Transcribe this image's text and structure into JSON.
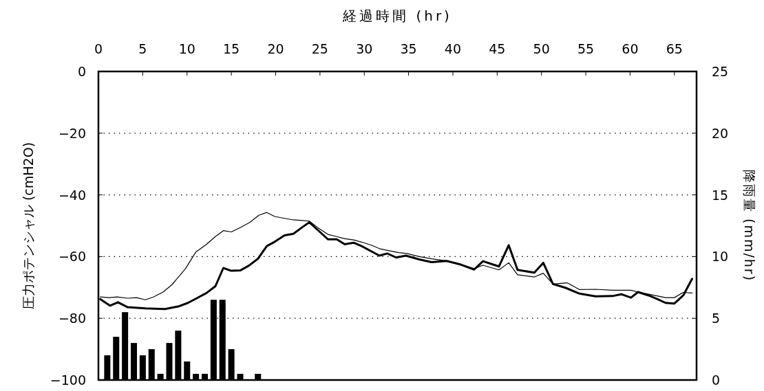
{
  "chart_data": {
    "type": "line",
    "xlabel": "経過時間 (hr)",
    "ylabel": "圧力ポテンシャル (cmH2O)",
    "y2label": "降雨量 (mm/hr)",
    "xlim": [
      0,
      67.5
    ],
    "xticks": [
      0,
      5,
      10,
      15,
      20,
      25,
      30,
      35,
      40,
      45,
      50,
      55,
      60,
      65
    ],
    "ylim": [
      -100,
      0
    ],
    "yticks": [
      -100,
      -80,
      -60,
      -40,
      -20,
      0
    ],
    "y2lim": [
      0,
      25
    ],
    "y2ticks": [
      0,
      5,
      10,
      15,
      20,
      25
    ],
    "grid": "y",
    "series": [
      {
        "type": "bar",
        "axis": "y2",
        "color": "#000000",
        "x": [
          1,
          2,
          3,
          4,
          5,
          6,
          7,
          8,
          9,
          10,
          11,
          12,
          13,
          14,
          15,
          16,
          18
        ],
        "values": [
          2,
          3.5,
          5.5,
          3,
          2,
          2.5,
          0.5,
          3,
          4,
          1.5,
          0.5,
          0.5,
          6.5,
          6.5,
          2.5,
          0.5,
          0.5
        ]
      },
      {
        "color": "#000000",
        "x": [
          0.2,
          1.2,
          2.1,
          3.3,
          4.3,
          5.3,
          6.2,
          7.3,
          8.3,
          9.8,
          11.0,
          12.2,
          13.2,
          14.1,
          15.0,
          16.0,
          17.1,
          18.1,
          19.0,
          19.9,
          21.0,
          22.0,
          23.0,
          23.8,
          24.8,
          25.9,
          26.9,
          27.8,
          28.8,
          29.7,
          30.8,
          31.8,
          32.8,
          33.9,
          34.8,
          36.2,
          37.6,
          39.3,
          40.9,
          42.4,
          43.4,
          45.2,
          46.3,
          47.3,
          49.2,
          50.2,
          51.3,
          52.9,
          54.3,
          56.1,
          58.0,
          60.1,
          60.9,
          62.1,
          64.0,
          65.0,
          66.0,
          67.0
        ],
        "values": [
          -73.1,
          -73.3,
          -73.1,
          -73.5,
          -73.3,
          -74.0,
          -73.1,
          -71.5,
          -69.1,
          -64.0,
          -58.5,
          -56.0,
          -53.5,
          -51.6,
          -52.0,
          -50.6,
          -48.9,
          -46.6,
          -45.7,
          -47.0,
          -47.6,
          -48.1,
          -48.3,
          -48.5,
          -50.7,
          -52.8,
          -53.5,
          -54.2,
          -54.6,
          -55.3,
          -56.3,
          -57.5,
          -58.1,
          -58.7,
          -59.0,
          -60.0,
          -60.7,
          -61.4,
          -62.6,
          -63.9,
          -62.8,
          -64.3,
          -62.0,
          -65.9,
          -66.6,
          -65.4,
          -68.9,
          -68.5,
          -70.7,
          -70.6,
          -70.9,
          -70.9,
          -71.5,
          -72.2,
          -73.3,
          -73.3,
          -71.6,
          -71.8
        ]
      },
      {
        "color": "#000000",
        "x": [
          0.2,
          1.3,
          2.2,
          3.3,
          5.3,
          7.5,
          9.1,
          10.1,
          11.1,
          12.2,
          13.2,
          14.1,
          15.0,
          16.0,
          17.0,
          18.0,
          19.0,
          19.9,
          21.0,
          22.0,
          22.9,
          23.8,
          24.8,
          25.9,
          26.9,
          27.8,
          28.8,
          29.7,
          30.8,
          31.7,
          32.6,
          33.6,
          34.7,
          36.2,
          37.6,
          39.3,
          40.9,
          42.4,
          43.4,
          45.2,
          46.3,
          47.3,
          49.2,
          50.2,
          51.3,
          52.7,
          54.3,
          56.1,
          58.0,
          59.0,
          60.1,
          60.9,
          62.1,
          63.1,
          64.0,
          65.0,
          66.0,
          67.0
        ],
        "values": [
          -73.8,
          -75.9,
          -74.8,
          -76.4,
          -76.8,
          -77.0,
          -76.1,
          -75.0,
          -73.5,
          -71.8,
          -69.6,
          -63.7,
          -64.6,
          -64.5,
          -62.9,
          -60.7,
          -56.6,
          -55.2,
          -53.1,
          -52.6,
          -50.7,
          -48.9,
          -51.5,
          -54.4,
          -54.4,
          -56.0,
          -55.5,
          -56.6,
          -58.3,
          -59.7,
          -59.0,
          -60.3,
          -59.7,
          -60.9,
          -61.8,
          -61.4,
          -62.6,
          -64.2,
          -61.5,
          -63.2,
          -56.3,
          -64.3,
          -65.2,
          -62.0,
          -68.9,
          -70.1,
          -72.0,
          -72.9,
          -72.8,
          -72.2,
          -73.3,
          -71.5,
          -72.6,
          -73.8,
          -75.0,
          -75.2,
          -72.6,
          -67.2
        ]
      }
    ]
  }
}
